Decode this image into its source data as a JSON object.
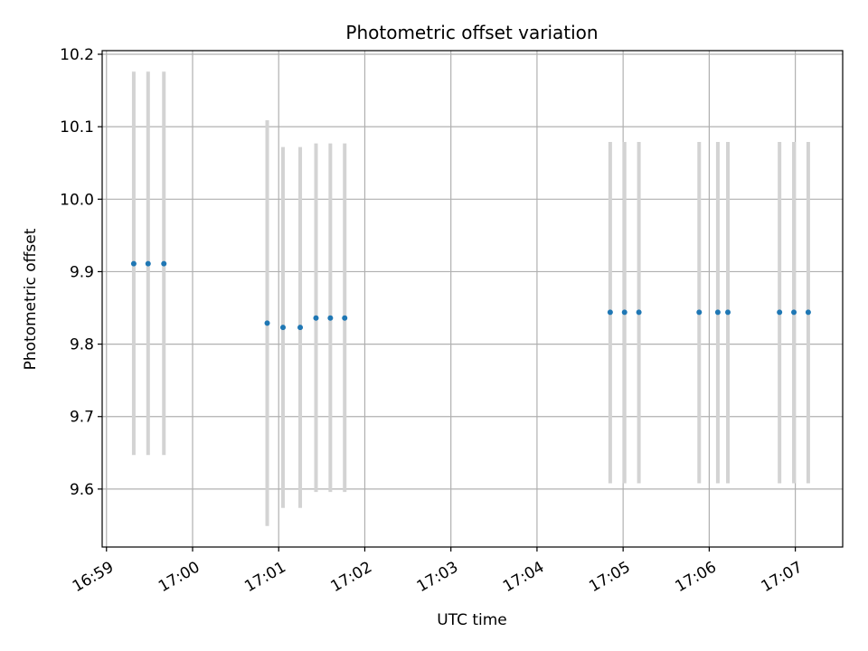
{
  "chart_data": {
    "type": "scatter",
    "title": "Photometric offset variation",
    "xlabel": "UTC time",
    "ylabel": "Photometric offset",
    "x_axis": "time",
    "xlim": [
      "16:58:57",
      "17:07:33"
    ],
    "ylim": [
      9.52,
      10.205
    ],
    "grid": true,
    "xticks": [
      "16:59",
      "17:00",
      "17:01",
      "17:02",
      "17:03",
      "17:04",
      "17:05",
      "17:06",
      "17:07"
    ],
    "yticks": [
      9.6,
      9.7,
      9.8,
      9.9,
      10.0,
      10.1,
      10.2
    ],
    "ytick_labels": [
      "9.6",
      "9.7",
      "9.8",
      "9.9",
      "10.0",
      "10.1",
      "10.2"
    ],
    "colors": {
      "points": "#1f77b4",
      "errorbars": "#d3d3d3",
      "grid": "#b0b0b0"
    },
    "points": [
      {
        "t": "16:59:19",
        "y": 9.911,
        "lo": 9.647,
        "hi": 10.176
      },
      {
        "t": "16:59:29",
        "y": 9.911,
        "lo": 9.647,
        "hi": 10.176
      },
      {
        "t": "16:59:40",
        "y": 9.911,
        "lo": 9.647,
        "hi": 10.176
      },
      {
        "t": "17:00:52",
        "y": 9.829,
        "lo": 9.549,
        "hi": 10.109
      },
      {
        "t": "17:01:03",
        "y": 9.823,
        "lo": 9.574,
        "hi": 10.072
      },
      {
        "t": "17:01:15",
        "y": 9.823,
        "lo": 9.574,
        "hi": 10.072
      },
      {
        "t": "17:01:26",
        "y": 9.836,
        "lo": 9.596,
        "hi": 10.077
      },
      {
        "t": "17:01:36",
        "y": 9.836,
        "lo": 9.596,
        "hi": 10.077
      },
      {
        "t": "17:01:46",
        "y": 9.836,
        "lo": 9.596,
        "hi": 10.077
      },
      {
        "t": "17:04:51",
        "y": 9.844,
        "lo": 9.608,
        "hi": 10.079
      },
      {
        "t": "17:05:01",
        "y": 9.844,
        "lo": 9.608,
        "hi": 10.079
      },
      {
        "t": "17:05:11",
        "y": 9.844,
        "lo": 9.608,
        "hi": 10.079
      },
      {
        "t": "17:05:53",
        "y": 9.844,
        "lo": 9.608,
        "hi": 10.079
      },
      {
        "t": "17:06:06",
        "y": 9.844,
        "lo": 9.608,
        "hi": 10.079
      },
      {
        "t": "17:06:13",
        "y": 9.844,
        "lo": 9.608,
        "hi": 10.079
      },
      {
        "t": "17:06:49",
        "y": 9.844,
        "lo": 9.608,
        "hi": 10.079
      },
      {
        "t": "17:06:59",
        "y": 9.844,
        "lo": 9.608,
        "hi": 10.079
      },
      {
        "t": "17:07:09",
        "y": 9.844,
        "lo": 9.608,
        "hi": 10.079
      }
    ]
  }
}
